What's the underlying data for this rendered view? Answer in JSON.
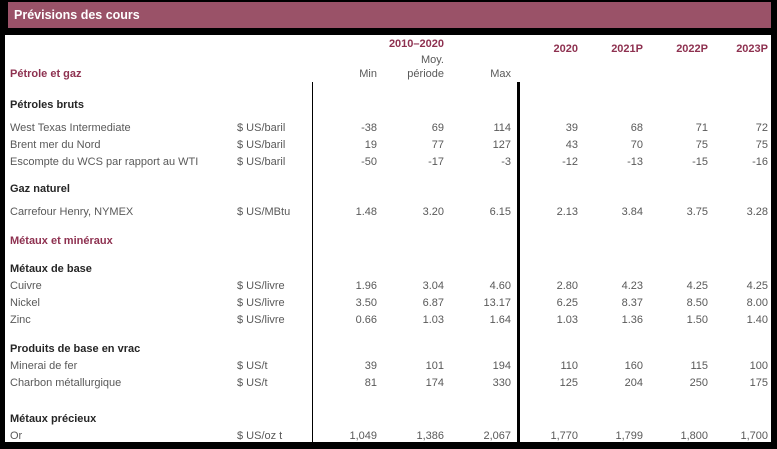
{
  "title_bar": {
    "title": "Prévisions des cours"
  },
  "colors": {
    "title_bar_bg": "#9a5268",
    "maroon_text": "#8e3150",
    "body_text": "#595959",
    "section_text": "#262626",
    "frame": "#000000",
    "sheet_bg": "#ffffff"
  },
  "header": {
    "period_label": "2010–2020",
    "stat_cols": {
      "min": "Min",
      "moy_line1": "Moy.",
      "moy_line2": "période",
      "max": "Max"
    },
    "year_cols": [
      "2020",
      "2021P",
      "2022P",
      "2023P"
    ],
    "first_section": "Pétrole et gaz"
  },
  "table": {
    "groups": [
      {
        "section": "Pétroles bruts",
        "style": "black",
        "rows": [
          {
            "label": "West Texas Intermediate",
            "unit": "$ US/baril",
            "values": [
              "-38",
              "69",
              "114",
              "39",
              "68",
              "71",
              "72"
            ]
          },
          {
            "label": "Brent mer du Nord",
            "unit": "$ US/baril",
            "values": [
              "19",
              "77",
              "127",
              "43",
              "70",
              "75",
              "75"
            ]
          },
          {
            "label": "Escompte du WCS par rapport au WTI",
            "unit": "$ US/baril",
            "values": [
              "-50",
              "-17",
              "-3",
              "-12",
              "-13",
              "-15",
              "-16"
            ]
          }
        ]
      },
      {
        "section": "Gaz naturel",
        "style": "black",
        "rows": [
          {
            "label": "Carrefour Henry, NYMEX",
            "unit": "$ US/MBtu",
            "values": [
              "1.48",
              "3.20",
              "6.15",
              "2.13",
              "3.84",
              "3.75",
              "3.28"
            ]
          }
        ]
      },
      {
        "section": "Métaux et minéraux",
        "style": "maroon",
        "rows": []
      },
      {
        "section": "Métaux de base",
        "style": "black",
        "rows": [
          {
            "label": "Cuivre",
            "unit": "$ US/livre",
            "values": [
              "1.96",
              "3.04",
              "4.60",
              "2.80",
              "4.23",
              "4.25",
              "4.25"
            ]
          },
          {
            "label": "Nickel",
            "unit": "$ US/livre",
            "values": [
              "3.50",
              "6.87",
              "13.17",
              "6.25",
              "8.37",
              "8.50",
              "8.00"
            ]
          },
          {
            "label": "Zinc",
            "unit": "$ US/livre",
            "values": [
              "0.66",
              "1.03",
              "1.64",
              "1.03",
              "1.36",
              "1.50",
              "1.40"
            ]
          }
        ]
      },
      {
        "section": "Produits de base en vrac",
        "style": "black",
        "rows": [
          {
            "label": "Minerai de fer",
            "unit": "$ US/t",
            "values": [
              "39",
              "101",
              "194",
              "110",
              "160",
              "115",
              "100"
            ]
          },
          {
            "label": "Charbon métallurgique",
            "unit": "$ US/t",
            "values": [
              "81",
              "174",
              "330",
              "125",
              "204",
              "250",
              "175"
            ]
          }
        ]
      },
      {
        "section": "Métaux précieux",
        "style": "black",
        "rows": [
          {
            "label": "Or",
            "unit": "$ US/oz t",
            "values": [
              "1,049",
              "1,386",
              "2,067",
              "1,770",
              "1,799",
              "1,800",
              "1,700"
            ]
          }
        ]
      }
    ]
  }
}
